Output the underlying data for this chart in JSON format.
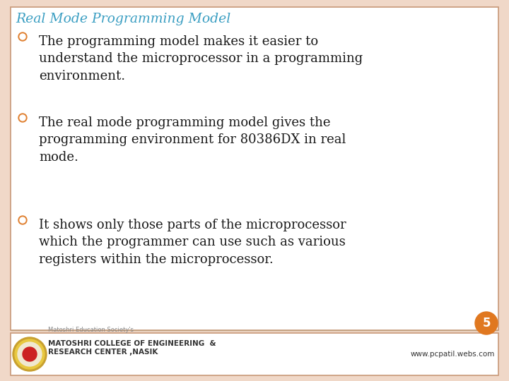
{
  "title": "Real Mode Programming Model",
  "title_color": "#3a9ec2",
  "title_fontsize": 13.5,
  "title_style": "italic",
  "title_font": "serif",
  "background_color": "#f0d8c8",
  "inner_background": "#ffffff",
  "bullet_color": "#e08030",
  "bullet_inner": "#ffffff",
  "text_color": "#1a1a1a",
  "bullets": [
    "The programming model makes it easier to\nunderstand the microprocessor in a programming\nenvironment.",
    "The real mode programming model gives the\nprogramming environment for 80386DX in real\nmode.",
    "It shows only those parts of the microprocessor\nwhich the programmer can use such as various\nregisters within the microprocessor."
  ],
  "bullet_fontsize": 13,
  "bullet_font": "serif",
  "footer_left1": "Matoshri Education Society's",
  "footer_left2": "MATOSHRI COLLEGE OF ENGINEERING  &",
  "footer_left3": "RESEARCH CENTER ,NASIK",
  "footer_right": "www.pcpatil.webs.com",
  "footer_fontsize": 7.5,
  "footer_small_fontsize": 6,
  "page_number": "5",
  "page_circle_color": "#e07820",
  "page_number_color": "#ffffff",
  "page_fontsize": 12,
  "border_color": "#c89878",
  "divider_color": "#c0a080"
}
